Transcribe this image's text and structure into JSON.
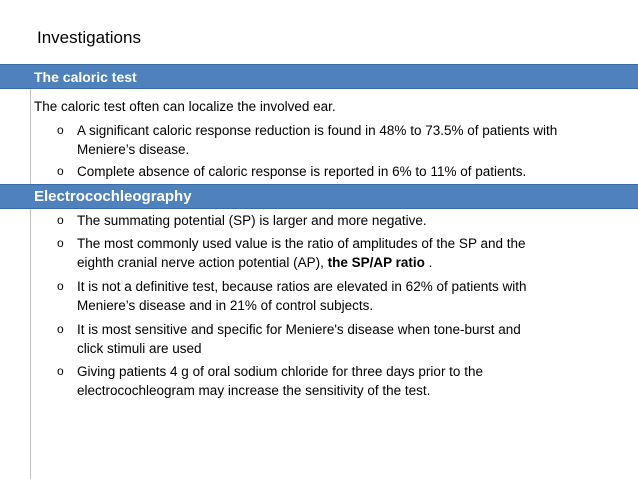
{
  "slide_title": "Investigations",
  "caloric": {
    "header": "The caloric test",
    "intro": "The caloric test often can localize the involved ear.",
    "bullets": [
      {
        "marker": "o",
        "line1": "A significant caloric response reduction is found in 48%  to 73.5% of patients with",
        "line2": "Meniere’s disease."
      },
      {
        "marker": "o",
        "line1": "Complete absence of  caloric response is reported in 6% to 11% of patients."
      }
    ]
  },
  "ecochg": {
    "header": "Electrocochleography",
    "bullets": [
      {
        "marker": "o",
        "line1": "The summating potential (SP) is larger and more negative."
      },
      {
        "marker": "o",
        "line1": "The most commonly used value is the ratio of amplitudes of the SP  and the",
        "line2_pre": "eighth cranial nerve action potential (AP), ",
        "line2_strong": "the SP/AP ratio",
        "line2_post": " ."
      },
      {
        "marker": "o",
        "line1": "It is not a definitive  test, because ratios are elevated in 62% of patients with",
        "line2": "Meniere’s disease and in 21% of control subjects."
      },
      {
        "marker": "o",
        "line1": "It  is most sensitive and  specific  for  Meniere's  disease  when  tone-burst  and",
        "line2": "click  stimuli  are  used"
      },
      {
        "marker": "o",
        "line1": "Giving patients  4 g  of oral  sodium  chloride  for  three  days  prior  to  the",
        "line2": "electrocochleogram  may  increase  the  sensitivity  of  the  test."
      }
    ]
  },
  "colors": {
    "header_bg": "#4f81bd",
    "header_text": "#ffffff",
    "body_text": "#000000"
  }
}
